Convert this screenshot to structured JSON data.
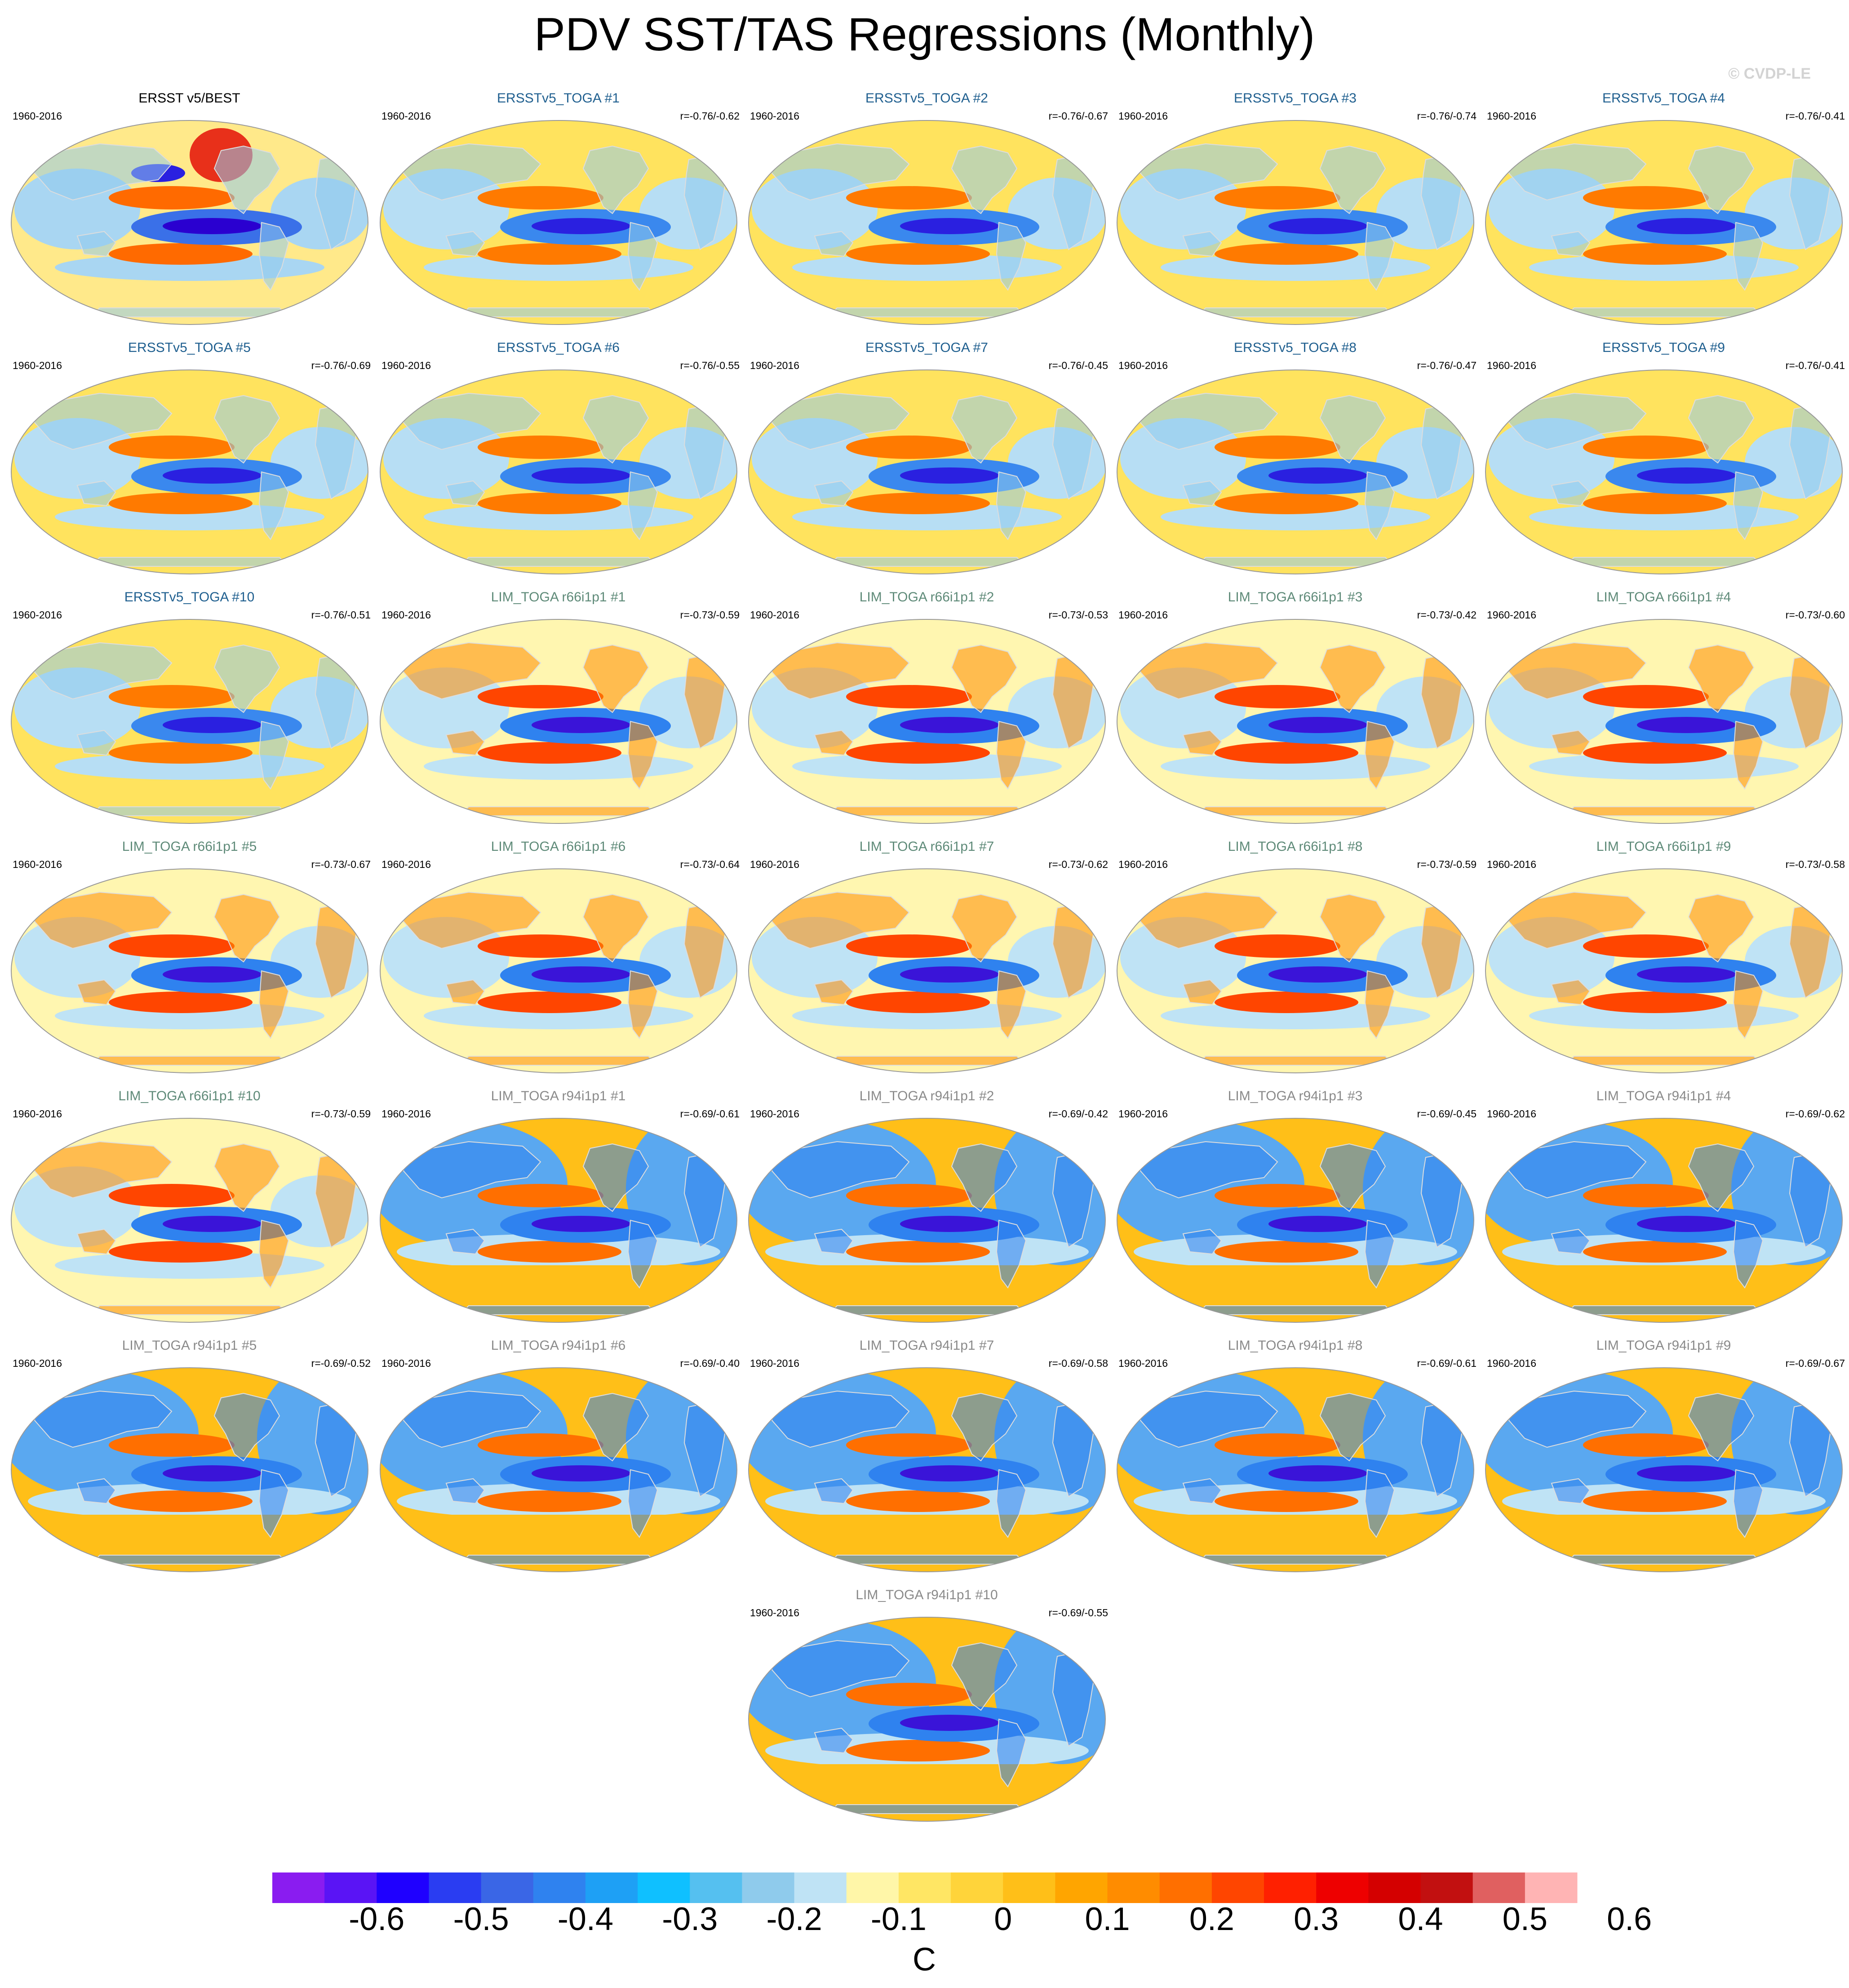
{
  "title": "PDV SST/TAS Regressions (Monthly)",
  "watermark": "© CVDP-LE",
  "colors": {
    "obs_title": "#000000",
    "ersst_title": "#1f5f8f",
    "lim66_title": "#5e8a78",
    "lim94_title": "#8a8a8a"
  },
  "panels": [
    {
      "title": "ERSST v5/BEST",
      "group": "obs",
      "period": "1960-2016",
      "corr": "",
      "style": "obs"
    },
    {
      "title": "ERSSTv5_TOGA #1",
      "group": "ersst",
      "period": "1960-2016",
      "corr": "r=-0.76/-0.62",
      "style": "ersst"
    },
    {
      "title": "ERSSTv5_TOGA #2",
      "group": "ersst",
      "period": "1960-2016",
      "corr": "r=-0.76/-0.67",
      "style": "ersst"
    },
    {
      "title": "ERSSTv5_TOGA #3",
      "group": "ersst",
      "period": "1960-2016",
      "corr": "r=-0.76/-0.74",
      "style": "ersst"
    },
    {
      "title": "ERSSTv5_TOGA #4",
      "group": "ersst",
      "period": "1960-2016",
      "corr": "r=-0.76/-0.41",
      "style": "ersst"
    },
    {
      "title": "ERSSTv5_TOGA #5",
      "group": "ersst",
      "period": "1960-2016",
      "corr": "r=-0.76/-0.69",
      "style": "ersst"
    },
    {
      "title": "ERSSTv5_TOGA #6",
      "group": "ersst",
      "period": "1960-2016",
      "corr": "r=-0.76/-0.55",
      "style": "ersst"
    },
    {
      "title": "ERSSTv5_TOGA #7",
      "group": "ersst",
      "period": "1960-2016",
      "corr": "r=-0.76/-0.45",
      "style": "ersst"
    },
    {
      "title": "ERSSTv5_TOGA #8",
      "group": "ersst",
      "period": "1960-2016",
      "corr": "r=-0.76/-0.47",
      "style": "ersst"
    },
    {
      "title": "ERSSTv5_TOGA #9",
      "group": "ersst",
      "period": "1960-2016",
      "corr": "r=-0.76/-0.41",
      "style": "ersst"
    },
    {
      "title": "ERSSTv5_TOGA #10",
      "group": "ersst",
      "period": "1960-2016",
      "corr": "r=-0.76/-0.51",
      "style": "ersst"
    },
    {
      "title": "LIM_TOGA r66i1p1 #1",
      "group": "lim66",
      "period": "1960-2016",
      "corr": "r=-0.73/-0.59",
      "style": "lim66"
    },
    {
      "title": "LIM_TOGA r66i1p1 #2",
      "group": "lim66",
      "period": "1960-2016",
      "corr": "r=-0.73/-0.53",
      "style": "lim66"
    },
    {
      "title": "LIM_TOGA r66i1p1 #3",
      "group": "lim66",
      "period": "1960-2016",
      "corr": "r=-0.73/-0.42",
      "style": "lim66"
    },
    {
      "title": "LIM_TOGA r66i1p1 #4",
      "group": "lim66",
      "period": "1960-2016",
      "corr": "r=-0.73/-0.60",
      "style": "lim66"
    },
    {
      "title": "LIM_TOGA r66i1p1 #5",
      "group": "lim66",
      "period": "1960-2016",
      "corr": "r=-0.73/-0.67",
      "style": "lim66"
    },
    {
      "title": "LIM_TOGA r66i1p1 #6",
      "group": "lim66",
      "period": "1960-2016",
      "corr": "r=-0.73/-0.64",
      "style": "lim66"
    },
    {
      "title": "LIM_TOGA r66i1p1 #7",
      "group": "lim66",
      "period": "1960-2016",
      "corr": "r=-0.73/-0.62",
      "style": "lim66"
    },
    {
      "title": "LIM_TOGA r66i1p1 #8",
      "group": "lim66",
      "period": "1960-2016",
      "corr": "r=-0.73/-0.59",
      "style": "lim66"
    },
    {
      "title": "LIM_TOGA r66i1p1 #9",
      "group": "lim66",
      "period": "1960-2016",
      "corr": "r=-0.73/-0.58",
      "style": "lim66"
    },
    {
      "title": "LIM_TOGA r66i1p1 #10",
      "group": "lim66",
      "period": "1960-2016",
      "corr": "r=-0.73/-0.59",
      "style": "lim66"
    },
    {
      "title": "LIM_TOGA r94i1p1 #1",
      "group": "lim94",
      "period": "1960-2016",
      "corr": "r=-0.69/-0.61",
      "style": "lim94"
    },
    {
      "title": "LIM_TOGA r94i1p1 #2",
      "group": "lim94",
      "period": "1960-2016",
      "corr": "r=-0.69/-0.42",
      "style": "lim94"
    },
    {
      "title": "LIM_TOGA r94i1p1 #3",
      "group": "lim94",
      "period": "1960-2016",
      "corr": "r=-0.69/-0.45",
      "style": "lim94"
    },
    {
      "title": "LIM_TOGA r94i1p1 #4",
      "group": "lim94",
      "period": "1960-2016",
      "corr": "r=-0.69/-0.62",
      "style": "lim94"
    },
    {
      "title": "LIM_TOGA r94i1p1 #5",
      "group": "lim94",
      "period": "1960-2016",
      "corr": "r=-0.69/-0.52",
      "style": "lim94"
    },
    {
      "title": "LIM_TOGA r94i1p1 #6",
      "group": "lim94",
      "period": "1960-2016",
      "corr": "r=-0.69/-0.40",
      "style": "lim94"
    },
    {
      "title": "LIM_TOGA r94i1p1 #7",
      "group": "lim94",
      "period": "1960-2016",
      "corr": "r=-0.69/-0.58",
      "style": "lim94"
    },
    {
      "title": "LIM_TOGA r94i1p1 #8",
      "group": "lim94",
      "period": "1960-2016",
      "corr": "r=-0.69/-0.61",
      "style": "lim94"
    },
    {
      "title": "LIM_TOGA r94i1p1 #9",
      "group": "lim94",
      "period": "1960-2016",
      "corr": "r=-0.69/-0.67",
      "style": "lim94"
    },
    {
      "title": "LIM_TOGA r94i1p1 #10",
      "group": "lim94",
      "period": "1960-2016",
      "corr": "r=-0.69/-0.55",
      "style": "lim94"
    }
  ],
  "colorbar": {
    "colors": [
      "#8a1cf0",
      "#5a14f5",
      "#1f00ff",
      "#2a3df2",
      "#3a66e6",
      "#2f82ef",
      "#1ea0f5",
      "#0fc0ff",
      "#55c0f0",
      "#8fcbec",
      "#bfe3f5",
      "#fff6a8",
      "#ffe664",
      "#ffd43a",
      "#ffbf18",
      "#ffa500",
      "#ff8c00",
      "#ff6f00",
      "#ff4500",
      "#ff2000",
      "#ee0000",
      "#d40000",
      "#c21010",
      "#e06060",
      "#ffb4b4"
    ],
    "labels": [
      "-0.6",
      "-0.5",
      "-0.4",
      "-0.3",
      "-0.2",
      "-0.1",
      "0",
      "0.1",
      "0.2",
      "0.3",
      "0.4",
      "0.5",
      "0.6"
    ],
    "units": "C"
  }
}
